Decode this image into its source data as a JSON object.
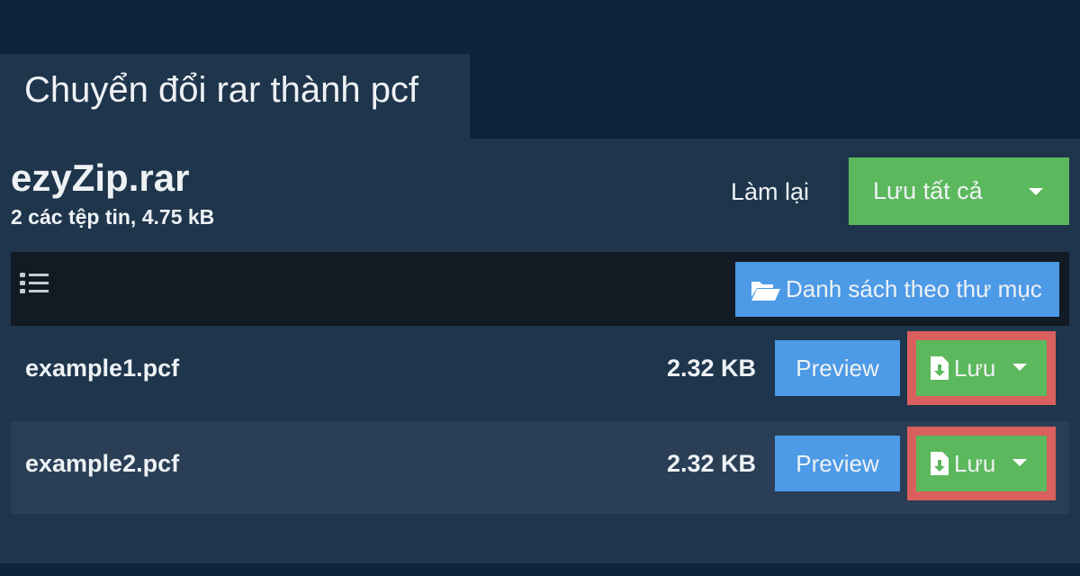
{
  "tab": {
    "title": "Chuyển đổi rar thành pcf"
  },
  "archive": {
    "name": "ezyZip.rar",
    "info": "2 các tệp tin, 4.75 kB"
  },
  "actions": {
    "redo": "Làm lại",
    "save_all": "Lưu tất cả"
  },
  "toolbar": {
    "list_icon": "list-icon",
    "folder_view": "Danh sách theo thư mục"
  },
  "files": [
    {
      "name": "example1.pcf",
      "size": "2.32 KB",
      "preview": "Preview",
      "save": "Lưu"
    },
    {
      "name": "example2.pcf",
      "size": "2.32 KB",
      "preview": "Preview",
      "save": "Lưu"
    }
  ],
  "colors": {
    "green": "#5cb85c",
    "blue": "#4d9ae6",
    "highlight": "#d9605e"
  }
}
